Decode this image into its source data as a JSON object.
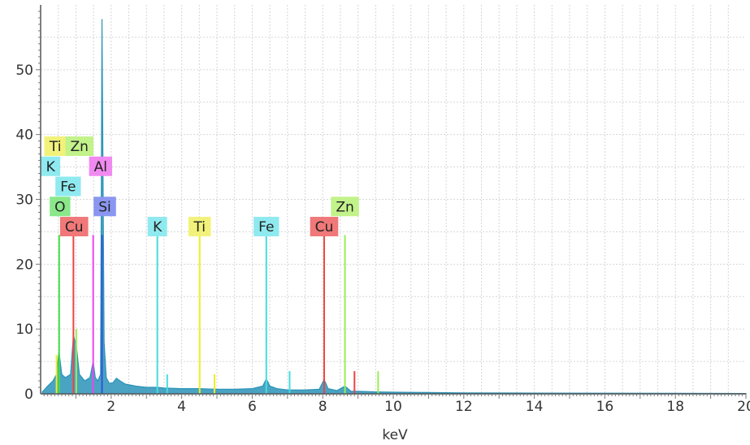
{
  "chart_data": {
    "type": "area",
    "title": "",
    "xlabel": "keV",
    "ylabel": "",
    "xlim": [
      0,
      20
    ],
    "ylim": [
      0,
      60
    ],
    "x_ticks": [
      2,
      4,
      6,
      8,
      10,
      12,
      14,
      16,
      18,
      20
    ],
    "y_ticks": [
      0,
      10,
      20,
      30,
      40,
      50
    ],
    "grid": true,
    "spectrum": {
      "color": "#2a93b8",
      "x": [
        0.05,
        0.2,
        0.35,
        0.45,
        0.52,
        0.6,
        0.7,
        0.85,
        0.93,
        1.01,
        1.1,
        1.25,
        1.4,
        1.49,
        1.55,
        1.62,
        1.7,
        1.74,
        1.8,
        1.86,
        1.95,
        2.05,
        2.15,
        2.25,
        2.4,
        2.7,
        3.0,
        3.31,
        3.5,
        4.0,
        4.5,
        5.0,
        5.5,
        6.0,
        6.3,
        6.4,
        6.5,
        6.7,
        7.0,
        7.5,
        7.9,
        8.04,
        8.15,
        8.4,
        8.63,
        8.8,
        9.0,
        9.5,
        10.0,
        11.0,
        12.0,
        14.0,
        16.0,
        18.0,
        20.0
      ],
      "counts": [
        0.3,
        1.2,
        2.0,
        3.0,
        6.5,
        3.0,
        2.5,
        3.0,
        9.0,
        7.5,
        3.0,
        2.0,
        2.5,
        5.0,
        2.5,
        2.0,
        3.0,
        57.8,
        8.0,
        2.5,
        1.6,
        1.7,
        2.4,
        2.0,
        1.5,
        1.2,
        1.0,
        1.0,
        0.9,
        0.8,
        0.8,
        0.7,
        0.7,
        0.8,
        1.2,
        2.3,
        1.2,
        0.8,
        0.6,
        0.6,
        0.7,
        2.2,
        0.8,
        0.5,
        1.2,
        0.4,
        0.4,
        0.3,
        0.25,
        0.2,
        0.15,
        0.12,
        0.1,
        0.08,
        0.05
      ]
    },
    "element_lines": [
      {
        "element": "O",
        "energy": 0.525,
        "height": 24.5,
        "color": "#44dd44"
      },
      {
        "element": "Ti",
        "energy": 0.452,
        "height": 6.0,
        "color": "#eeee22"
      },
      {
        "element": "Cu",
        "energy": 0.93,
        "height": 24.5,
        "color": "#ee4444"
      },
      {
        "element": "Zn",
        "energy": 1.01,
        "height": 10.0,
        "color": "#99ee55"
      },
      {
        "element": "Al",
        "energy": 1.49,
        "height": 24.5,
        "color": "#ee44ee"
      },
      {
        "element": "Si",
        "energy": 1.74,
        "height": 24.5,
        "color": "#3355dd"
      },
      {
        "element": "K",
        "energy": 3.31,
        "height": 24.5,
        "color": "#44dddd"
      },
      {
        "element": "K",
        "energy": 3.59,
        "height": 3.0,
        "color": "#44dddd"
      },
      {
        "element": "Ti",
        "energy": 4.51,
        "height": 24.5,
        "color": "#eeee22"
      },
      {
        "element": "Ti",
        "energy": 4.93,
        "height": 3.0,
        "color": "#eeee22"
      },
      {
        "element": "Fe",
        "energy": 6.4,
        "height": 24.5,
        "color": "#44dddd"
      },
      {
        "element": "Fe",
        "energy": 7.06,
        "height": 3.5,
        "color": "#44dddd"
      },
      {
        "element": "Cu",
        "energy": 8.04,
        "height": 24.5,
        "color": "#ee4444"
      },
      {
        "element": "Cu",
        "energy": 8.9,
        "height": 3.5,
        "color": "#ee4444"
      },
      {
        "element": "Zn",
        "energy": 8.63,
        "height": 24.5,
        "color": "#99ee55"
      },
      {
        "element": "Zn",
        "energy": 9.57,
        "height": 3.5,
        "color": "#99ee55"
      }
    ],
    "annotations": [
      {
        "text": "Ti",
        "energy": 0.42,
        "y": 38.2,
        "bg": "#f2f27a"
      },
      {
        "text": "Zn",
        "energy": 1.1,
        "y": 38.2,
        "bg": "#c2f28a"
      },
      {
        "text": "K",
        "energy": 0.28,
        "y": 35.1,
        "bg": "#8feaf0"
      },
      {
        "text": "Al",
        "energy": 1.7,
        "y": 35.1,
        "bg": "#f08af0"
      },
      {
        "text": "Fe",
        "energy": 0.78,
        "y": 32.0,
        "bg": "#8feaf0"
      },
      {
        "text": "O",
        "energy": 0.55,
        "y": 28.9,
        "bg": "#8ae88a"
      },
      {
        "text": "Si",
        "energy": 1.82,
        "y": 28.9,
        "bg": "#8a96f0"
      },
      {
        "text": "Cu",
        "energy": 0.95,
        "y": 25.8,
        "bg": "#f07878"
      },
      {
        "text": "K",
        "energy": 3.31,
        "y": 25.8,
        "bg": "#8feaf0"
      },
      {
        "text": "Ti",
        "energy": 4.51,
        "y": 25.8,
        "bg": "#f2f27a"
      },
      {
        "text": "Fe",
        "energy": 6.4,
        "y": 25.8,
        "bg": "#8feaf0"
      },
      {
        "text": "Cu",
        "energy": 8.04,
        "y": 25.8,
        "bg": "#f07878"
      },
      {
        "text": "Zn",
        "energy": 8.63,
        "y": 28.9,
        "bg": "#c2f28a"
      }
    ]
  }
}
